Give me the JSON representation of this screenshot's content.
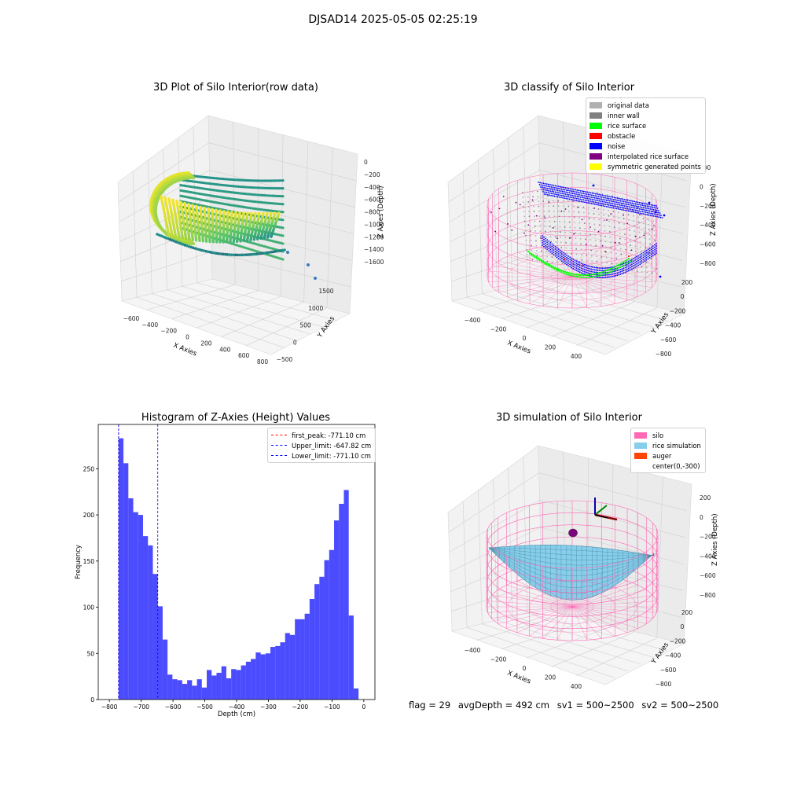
{
  "figure": {
    "suptitle": "DJSAD14 2025-05-05 02:25:19",
    "footer": {
      "flag": "flag = 29",
      "avg_depth": "avgDepth = 492 cm",
      "sv1": "sv1 = 500~2500",
      "sv2": "sv2 = 500~2500"
    }
  },
  "chart_data": [
    {
      "type": "scatter",
      "panel": "top-left",
      "title": "3D Plot of Silo Interior(row data)",
      "xlabel": "X Axies",
      "ylabel": "Y Axies",
      "zlabel": "Z Axies (Depth)",
      "x_ticks": [
        "−600",
        "−400",
        "−200",
        "0",
        "200",
        "400",
        "600",
        "800"
      ],
      "y_ticks": [
        "−500",
        "0",
        "500",
        "1000",
        "1500"
      ],
      "z_ticks": [
        "0",
        "−200",
        "−400",
        "−600",
        "−800",
        "−1000",
        "−1200",
        "−1400",
        "−1600"
      ],
      "colormap": [
        "#440154",
        "#21918c",
        "#5ec962",
        "#fde725"
      ],
      "grid": true
    },
    {
      "type": "scatter",
      "panel": "top-right",
      "title": "3D classify of Silo Interior",
      "xlabel": "X Axies",
      "ylabel": "Y Axies",
      "zlabel": "Z Axies (Depth)",
      "x_ticks": [
        "−400",
        "−200",
        "0",
        "200",
        "400"
      ],
      "y_ticks": [
        "200",
        "0",
        "−200",
        "−400",
        "−600",
        "−800"
      ],
      "z_ticks": [
        "200",
        "0",
        "−200",
        "−400",
        "−600",
        "−800"
      ],
      "legend_position": "top-right",
      "legend": [
        {
          "label": "original data",
          "color": "#b0b0b0"
        },
        {
          "label": "inner wall",
          "color": "#808080"
        },
        {
          "label": "rice surface",
          "color": "#00ff00"
        },
        {
          "label": "obstacle",
          "color": "#ff0000"
        },
        {
          "label": "noise",
          "color": "#0000ff"
        },
        {
          "label": "interpolated rice surface",
          "color": "#800080"
        },
        {
          "label": "symmetric generated points",
          "color": "#ffff00"
        }
      ],
      "silo_color": "#ff69b4",
      "grid": true
    },
    {
      "type": "bar",
      "panel": "bottom-left",
      "title": "Histogram of Z-Axies (Height) Values",
      "xlabel": "Depth (cm)",
      "ylabel": "Frequency",
      "xlim": [
        -800,
        0
      ],
      "ylim": [
        0,
        290
      ],
      "x_ticks": [
        -800,
        -700,
        -600,
        -500,
        -400,
        -300,
        -200,
        -100,
        0
      ],
      "y_ticks": [
        0,
        50,
        100,
        150,
        200,
        250
      ],
      "bin_width": 15.4,
      "bin_start": -771.1,
      "values": [
        283,
        256,
        218,
        203,
        200,
        177,
        167,
        136,
        101,
        65,
        27,
        22,
        21,
        17,
        21,
        15,
        22,
        13,
        32,
        26,
        29,
        36,
        23,
        33,
        32,
        37,
        41,
        44,
        51,
        49,
        50,
        57,
        58,
        62,
        72,
        70,
        87,
        87,
        93,
        109,
        125,
        133,
        151,
        162,
        194,
        212,
        227,
        91,
        12
      ],
      "bar_color": "#0000ff",
      "bar_alpha": 0.7,
      "lines": [
        {
          "label": "first_peak: -771.10 cm",
          "x": -771.1,
          "color": "#ff0000"
        },
        {
          "label": "Upper_limit: -647.82 cm",
          "x": -647.82,
          "color": "#0000ff"
        },
        {
          "label": "Lower_limit: -771.10 cm",
          "x": -771.1,
          "color": "#0000ff"
        }
      ],
      "legend_position": "top-right"
    },
    {
      "type": "surface",
      "panel": "bottom-right",
      "title": "3D simulation of Silo Interior",
      "xlabel": "X Axies",
      "ylabel": "Y Axies",
      "zlabel": "Z Axies (Depth)",
      "x_ticks": [
        "−400",
        "−200",
        "0",
        "200",
        "400"
      ],
      "y_ticks": [
        "200",
        "0",
        "−200",
        "−400",
        "−600",
        "−800"
      ],
      "z_ticks": [
        "200",
        "0",
        "−200",
        "−400",
        "−600",
        "−800"
      ],
      "legend_position": "top-right",
      "legend": [
        {
          "label": "silo",
          "color": "#ff69b4"
        },
        {
          "label": "rice simulation",
          "color": "#87ceeb"
        },
        {
          "label": "auger",
          "color": "#ff4500"
        },
        {
          "label": "center(0,-300)",
          "color": ""
        }
      ],
      "grid": true
    }
  ]
}
